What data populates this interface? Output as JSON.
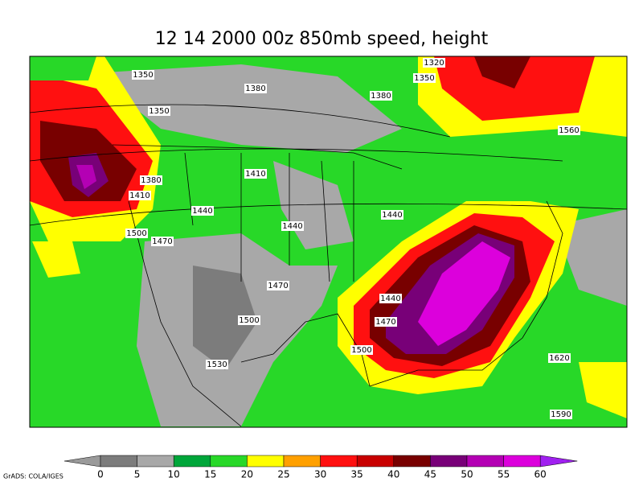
{
  "title": "12 14 2000 00z 850mb speed, height",
  "contour_labels": [
    1320,
    1350,
    1350,
    1380,
    1380,
    1350,
    1560,
    1410,
    1380,
    1410,
    1440,
    1440,
    1440,
    1500,
    1470,
    1470,
    1440,
    1470,
    1500,
    1500,
    1620,
    1530,
    1590
  ],
  "colorbar": {
    "levels": [
      0,
      5,
      10,
      15,
      20,
      25,
      30,
      35,
      40,
      45,
      50,
      55,
      60
    ],
    "colors": [
      "#9a9a9a",
      "#7c7c7c",
      "#a8a8a8",
      "#00a63a",
      "#28d828",
      "#ffff00",
      "#ffa000",
      "#ff1010",
      "#c80000",
      "#780000",
      "#780078",
      "#b400b4",
      "#dc00dc",
      "#a020f0"
    ]
  },
  "credit": "GrADS: COLA/IGES"
}
